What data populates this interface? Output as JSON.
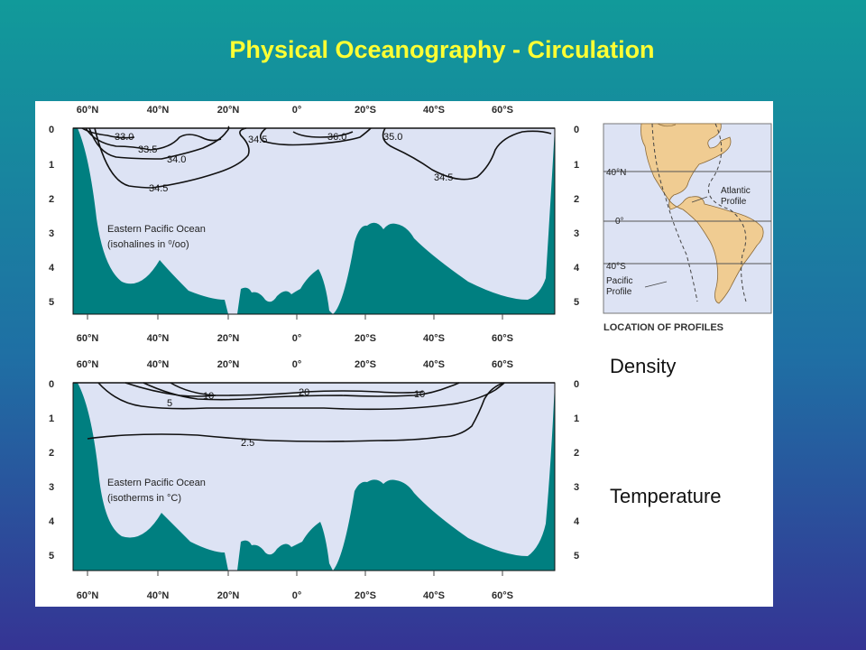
{
  "slide": {
    "title": "Physical Oceanography - Circulation"
  },
  "labels": {
    "density": "Density",
    "temperature": "Temperature"
  },
  "axes": {
    "lat_ticks": [
      "60°N",
      "40°N",
      "20°N",
      "0°",
      "20°S",
      "40°S",
      "60°S"
    ],
    "depth_ticks": [
      "0",
      "1",
      "2",
      "3",
      "4",
      "5"
    ]
  },
  "panels": [
    {
      "caption_line1": "Eastern Pacific Ocean",
      "caption_line2": "(isohalines in ⁰/oo)",
      "contour_labels": [
        "33.0",
        "33.5",
        "34.0",
        "34.5",
        "34.5",
        "36.0",
        "35.0",
        "34.5"
      ]
    },
    {
      "caption_line1": "Eastern Pacific Ocean",
      "caption_line2": "(isotherms in °C)",
      "contour_labels": [
        "10",
        "20",
        "10",
        "5",
        "2.5"
      ]
    }
  ],
  "map": {
    "labels": [
      "40°N",
      "Atlantic",
      "Profile",
      "0°",
      "40°S",
      "Pacific",
      "Profile"
    ],
    "caption": "LOCATION OF PROFILES"
  },
  "colors": {
    "seafloor": "#007f80",
    "water": "#dde3f4",
    "land": "#f0cc92",
    "title": "#ffff33"
  }
}
